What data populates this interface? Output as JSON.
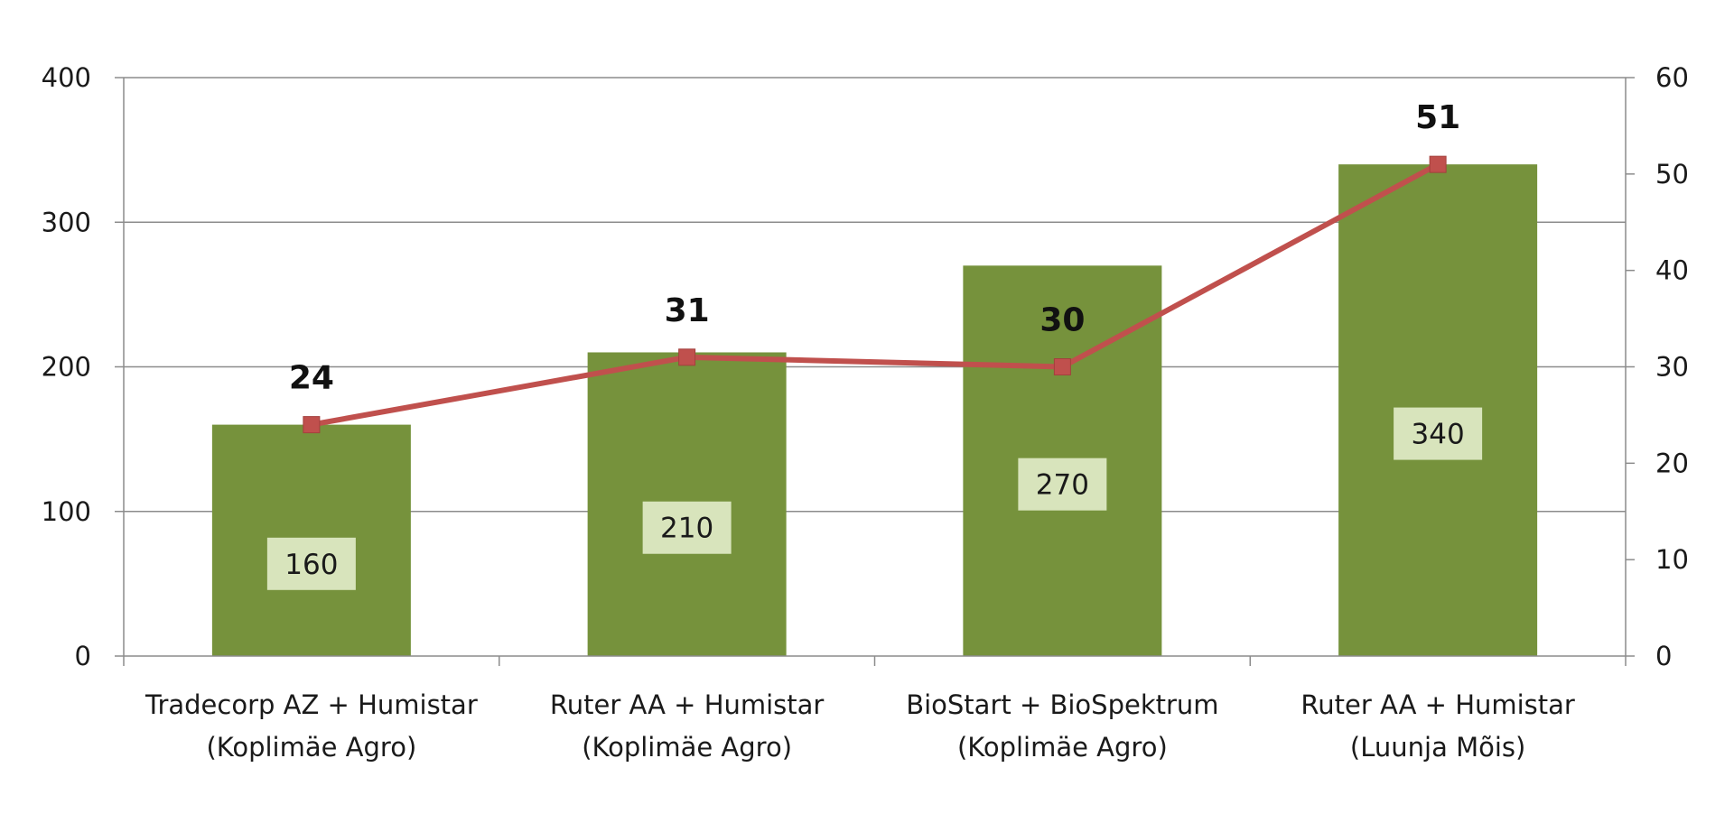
{
  "chart_data": {
    "type": "bar",
    "categories": [
      [
        "Tradecorp AZ + Humistar",
        "(Koplimäe Agro)"
      ],
      [
        "Ruter AA + Humistar",
        "(Koplimäe Agro)"
      ],
      [
        "BioStart + BioSpektrum",
        "(Koplimäe Agro)"
      ],
      [
        "Ruter AA + Humistar",
        "(Luunja Mõis)"
      ]
    ],
    "series": [
      {
        "type": "bar",
        "axis": "left",
        "values": [
          160,
          210,
          270,
          340
        ],
        "color": "#76923c",
        "label_bg": "#d8e4bc"
      },
      {
        "type": "line",
        "axis": "right",
        "values": [
          24,
          31,
          30,
          51
        ],
        "color": "#c0504d"
      }
    ],
    "y_left": {
      "ylim": [
        0,
        400
      ],
      "ticks": [
        0,
        100,
        200,
        300,
        400
      ]
    },
    "y_right": {
      "ylim": [
        0,
        60
      ],
      "ticks": [
        0,
        10,
        20,
        30,
        40,
        50,
        60
      ]
    },
    "grid": true,
    "legend": "none",
    "colors": {
      "grid": "#8c8c8c",
      "axis": "#8c8c8c"
    }
  }
}
